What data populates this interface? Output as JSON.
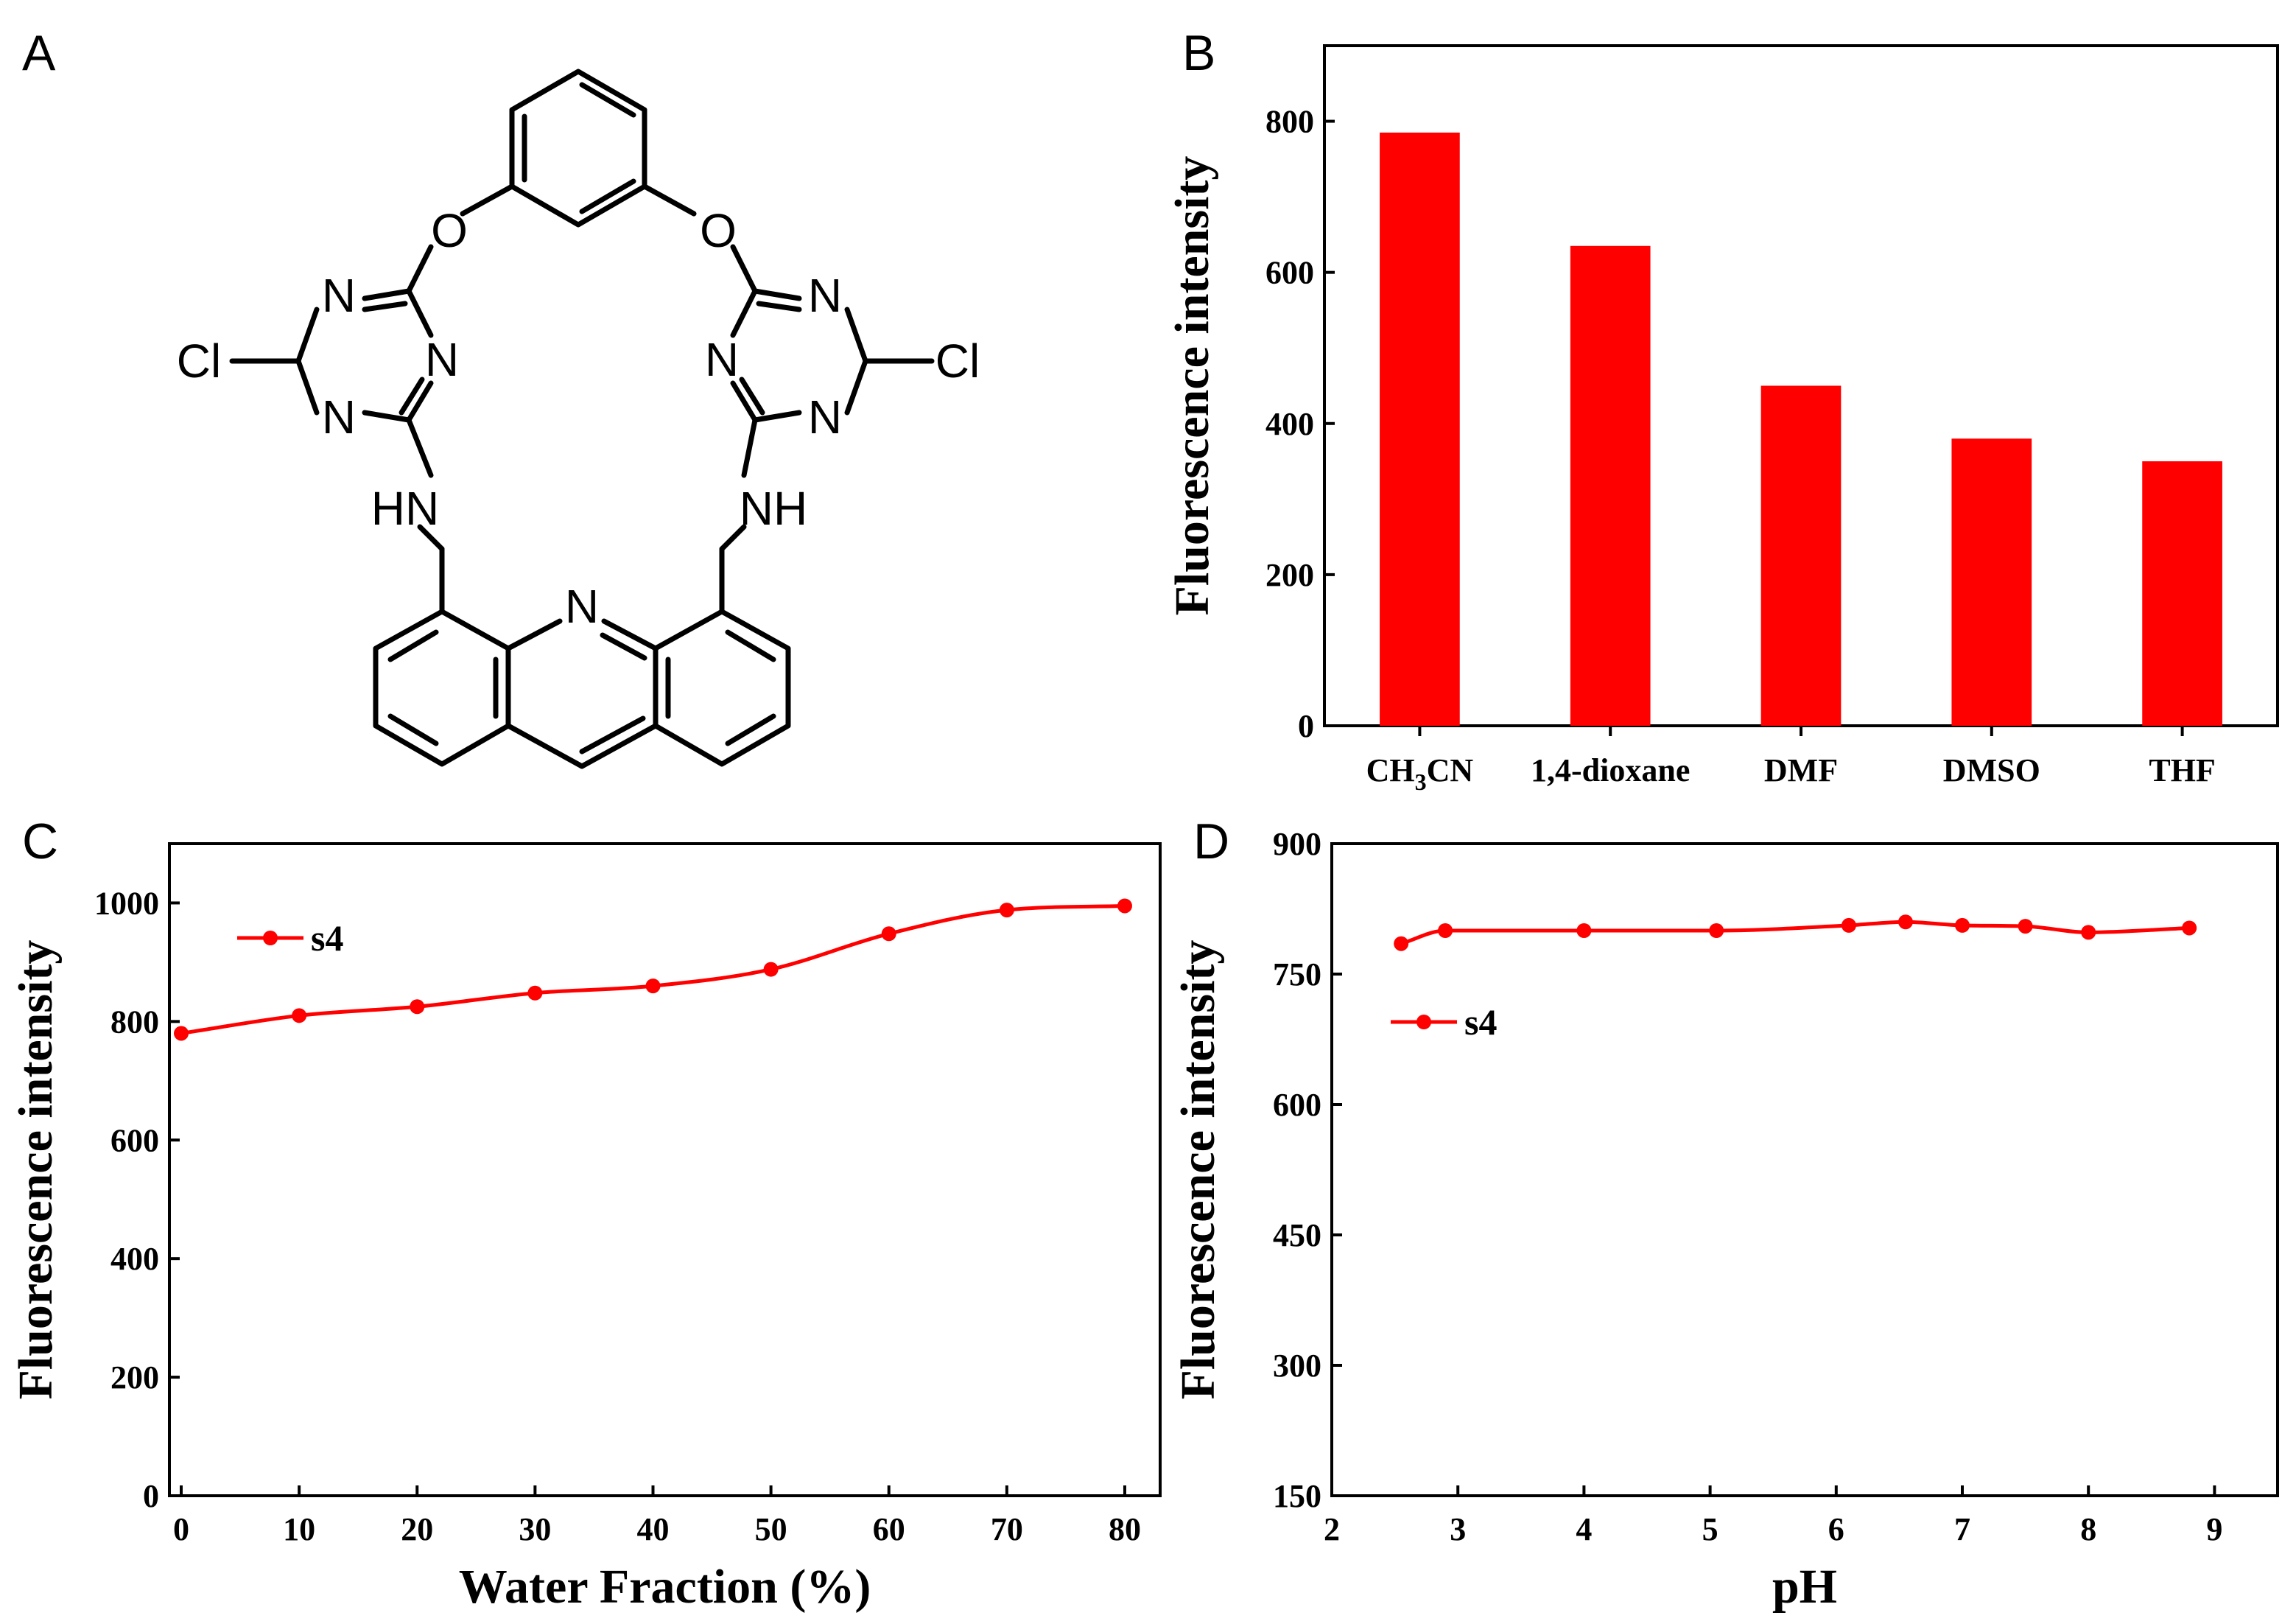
{
  "panel_labels": [
    "A",
    "B",
    "C",
    "D"
  ],
  "structure": {
    "atoms": {
      "cl_left": "Cl",
      "cl_right": "Cl",
      "o_left": "O",
      "o_right": "O",
      "n_l1": "N",
      "n_l2": "N",
      "n_l3": "N",
      "n_r1": "N",
      "n_r2": "N",
      "n_r3": "N",
      "nh_left": "HN",
      "nh_right": "NH",
      "n_acridine": "N"
    }
  },
  "chart_data": [
    {
      "panel": "B",
      "type": "bar",
      "title": "",
      "ylabel": "Fluorescence intensity",
      "xlabel": "",
      "categories": [
        {
          "main": "CH",
          "sub": "3",
          "tail": "CN"
        },
        {
          "main": "1,4-dioxane",
          "sub": "",
          "tail": ""
        },
        {
          "main": "DMF",
          "sub": "",
          "tail": ""
        },
        {
          "main": "DMSO",
          "sub": "",
          "tail": ""
        },
        {
          "main": "THF",
          "sub": "",
          "tail": ""
        }
      ],
      "values": [
        785,
        635,
        450,
        380,
        350
      ],
      "ylim": [
        0,
        900
      ],
      "yticks": [
        0,
        200,
        400,
        600,
        800
      ],
      "color": "#ff0000"
    },
    {
      "panel": "C",
      "type": "line",
      "title": "",
      "xlabel": "Water Fraction (%)",
      "ylabel": "Fluorescence intensity",
      "legend": "s4",
      "series": [
        {
          "name": "s4",
          "x": [
            0,
            10,
            20,
            30,
            40,
            50,
            60,
            70,
            80
          ],
          "y": [
            780,
            810,
            825,
            848,
            860,
            888,
            948,
            988,
            995
          ]
        }
      ],
      "xlim": [
        -1,
        83
      ],
      "ylim": [
        0,
        1100
      ],
      "xticks": [
        0,
        10,
        20,
        30,
        40,
        50,
        60,
        70,
        80
      ],
      "yticks": [
        0,
        200,
        400,
        600,
        800,
        1000
      ],
      "color": "#ff0000"
    },
    {
      "panel": "D",
      "type": "line",
      "title": "",
      "xlabel": "pH",
      "ylabel": "Fluorescence intensity",
      "legend": "s4",
      "series": [
        {
          "name": "s4",
          "x": [
            2.55,
            2.9,
            4.0,
            5.05,
            6.1,
            6.55,
            7.0,
            7.5,
            8.0,
            8.8
          ],
          "y": [
            785,
            800,
            800,
            800,
            806,
            810,
            806,
            805,
            798,
            803
          ]
        }
      ],
      "xlim": [
        2,
        9.5
      ],
      "ylim": [
        150,
        900
      ],
      "xticks": [
        2,
        3,
        4,
        5,
        6,
        7,
        8,
        9
      ],
      "yticks": [
        150,
        300,
        450,
        600,
        750,
        900
      ],
      "color": "#ff0000"
    }
  ]
}
